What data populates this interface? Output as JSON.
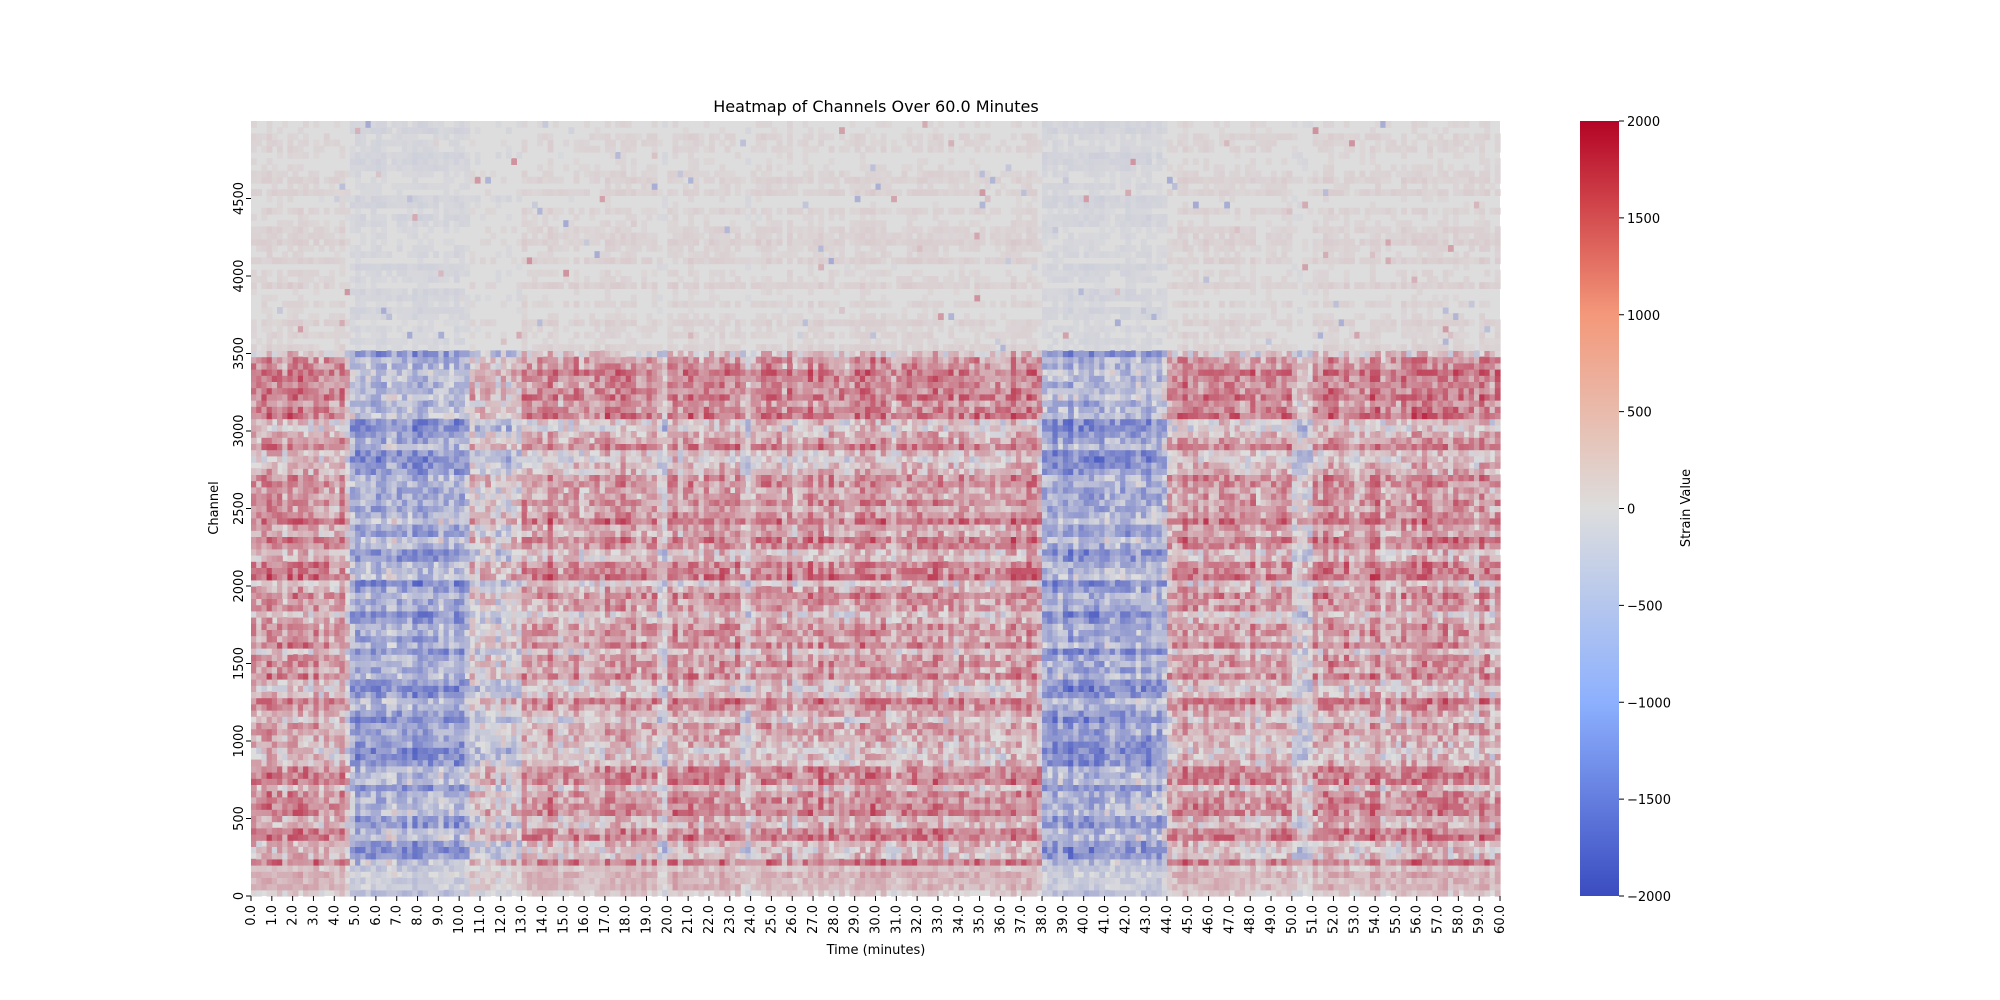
{
  "chart_data": {
    "type": "heatmap",
    "title": "Heatmap of Channels Over 60.0 Minutes",
    "xlabel": "Time (minutes)",
    "ylabel": "Channel",
    "xlim": [
      0,
      60
    ],
    "ylim": [
      0,
      5000
    ],
    "x_ticks": [
      "0.0",
      "1.0",
      "2.0",
      "3.0",
      "4.0",
      "5.0",
      "6.0",
      "7.0",
      "8.0",
      "9.0",
      "10.0",
      "11.0",
      "12.0",
      "13.0",
      "14.0",
      "15.0",
      "16.0",
      "17.0",
      "18.0",
      "19.0",
      "20.0",
      "21.0",
      "22.0",
      "23.0",
      "24.0",
      "25.0",
      "26.0",
      "27.0",
      "28.0",
      "29.0",
      "30.0",
      "31.0",
      "32.0",
      "33.0",
      "34.0",
      "35.0",
      "36.0",
      "37.0",
      "38.0",
      "39.0",
      "40.0",
      "41.0",
      "42.0",
      "43.0",
      "44.0",
      "45.0",
      "46.0",
      "47.0",
      "48.0",
      "49.0",
      "50.0",
      "51.0",
      "52.0",
      "53.0",
      "54.0",
      "55.0",
      "56.0",
      "57.0",
      "58.0",
      "59.0",
      "60.0"
    ],
    "y_ticks": [
      "0",
      "500",
      "1000",
      "1500",
      "2000",
      "2500",
      "3000",
      "3500",
      "4000",
      "4500"
    ],
    "colorbar": {
      "label": "Strain Value",
      "min": -2000,
      "max": 2000,
      "ticks": [
        "2000",
        "1500",
        "1000",
        "500",
        "0",
        "−500",
        "−1000",
        "−1500",
        "−2000"
      ],
      "colormap": "coolwarm",
      "low_color": "#3b4cc0",
      "mid_color": "#dddddd",
      "high_color": "#b40426"
    },
    "grid": false,
    "strong_positive_bands_minutes": [
      [
        0,
        4.5
      ],
      [
        13,
        19.5
      ],
      [
        20,
        23.5
      ],
      [
        24,
        38
      ],
      [
        44,
        50
      ],
      [
        51,
        60
      ]
    ],
    "strong_negative_bands_minutes": [
      [
        4.8,
        10.5
      ],
      [
        38,
        44
      ]
    ],
    "quiet_channels_above": 3500
  }
}
